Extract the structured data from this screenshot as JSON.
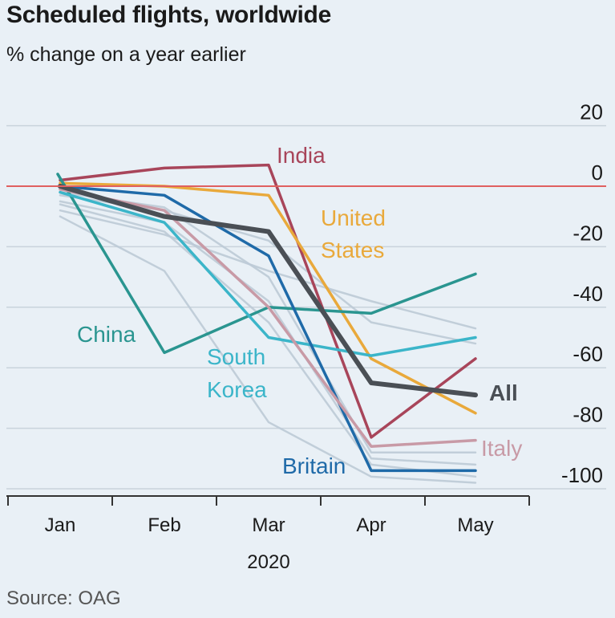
{
  "title": "Scheduled flights, worldwide",
  "subtitle": "% change on a year earlier",
  "source": "Source: OAG",
  "chart_data": {
    "type": "line",
    "title": "Scheduled flights, worldwide",
    "subtitle": "% change on a year earlier",
    "x": [
      "Jan",
      "Feb",
      "Mar",
      "Apr",
      "May"
    ],
    "x_group_label": "2020",
    "ylim": [
      -100,
      20
    ],
    "yticks": [
      20,
      0,
      -20,
      -40,
      -60,
      -80,
      -100
    ],
    "grid": true,
    "zero_line_color": "#e06060",
    "series": [
      {
        "name": "India",
        "values": [
          2,
          6,
          7,
          -83,
          -57
        ],
        "color": "#a8455a",
        "highlight": true
      },
      {
        "name": "United States",
        "values": [
          1,
          0,
          -3,
          -57,
          -75
        ],
        "color": "#e9a93b",
        "highlight": true
      },
      {
        "name": "China",
        "values": [
          4,
          -55,
          -40,
          -42,
          -29
        ],
        "color": "#2a9590",
        "highlight": true,
        "x_start": 0.05
      },
      {
        "name": "South Korea",
        "values": [
          -2,
          -12,
          -50,
          -56,
          -50
        ],
        "color": "#3bb5c9",
        "highlight": true
      },
      {
        "name": "Britain",
        "values": [
          0,
          -3,
          -23,
          -94,
          -94
        ],
        "color": "#1f6aa8",
        "highlight": true
      },
      {
        "name": "Italy",
        "values": [
          -1,
          -8,
          -40,
          -86,
          -84
        ],
        "color": "#c89aa6",
        "highlight": true
      },
      {
        "name": "All",
        "values": [
          0,
          -10,
          -15,
          -65,
          -69
        ],
        "color": "#4a4f55",
        "highlight": true
      },
      {
        "values": [
          -8,
          -16,
          -28,
          -38,
          -47
        ],
        "color": "#bccad6"
      },
      {
        "values": [
          -3,
          -8,
          -18,
          -45,
          -52
        ],
        "color": "#bccad6"
      },
      {
        "values": [
          -10,
          -28,
          -78,
          -96,
          -98
        ],
        "color": "#bccad6"
      },
      {
        "values": [
          -5,
          -12,
          -38,
          -90,
          -92
        ],
        "color": "#bccad6"
      },
      {
        "values": [
          -2,
          -7,
          -30,
          -88,
          -88
        ],
        "color": "#bccad6"
      },
      {
        "values": [
          -6,
          -15,
          -45,
          -92,
          -96
        ],
        "color": "#bccad6"
      }
    ],
    "labels": [
      {
        "text": "India",
        "series": "India"
      },
      {
        "text": "United",
        "series": "United States"
      },
      {
        "text": "States",
        "series": "United States"
      },
      {
        "text": "China",
        "series": "China"
      },
      {
        "text": "South",
        "series": "South Korea"
      },
      {
        "text": "Korea",
        "series": "South Korea"
      },
      {
        "text": "Britain",
        "series": "Britain"
      },
      {
        "text": "Italy",
        "series": "Italy"
      },
      {
        "text": "All",
        "series": "All"
      }
    ]
  }
}
